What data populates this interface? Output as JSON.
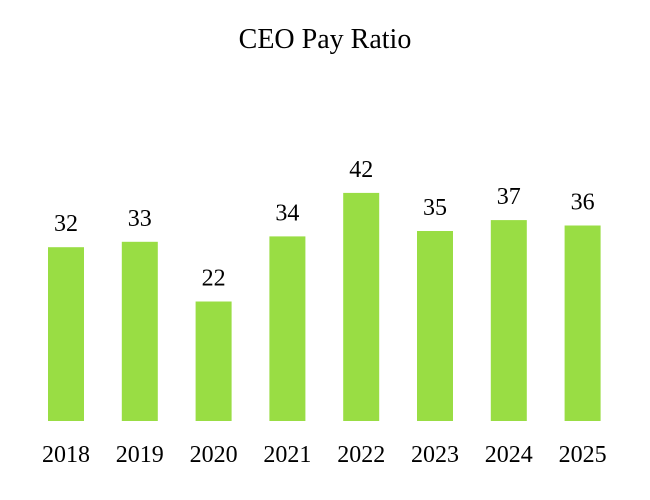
{
  "chart_data": {
    "type": "bar",
    "title": "CEO Pay Ratio",
    "xlabel": "",
    "ylabel": "",
    "categories": [
      "2018",
      "2019",
      "2020",
      "2021",
      "2022",
      "2023",
      "2024",
      "2025"
    ],
    "values": [
      32,
      33,
      22,
      34,
      42,
      35,
      37,
      36
    ],
    "data_labels": [
      "32",
      "33",
      "22",
      "34",
      "42",
      "35",
      "37",
      "36"
    ],
    "ylim": [
      0,
      42
    ],
    "grid": false,
    "legend": "none",
    "bar_color": "#99dd44",
    "text_color": "#000000"
  }
}
